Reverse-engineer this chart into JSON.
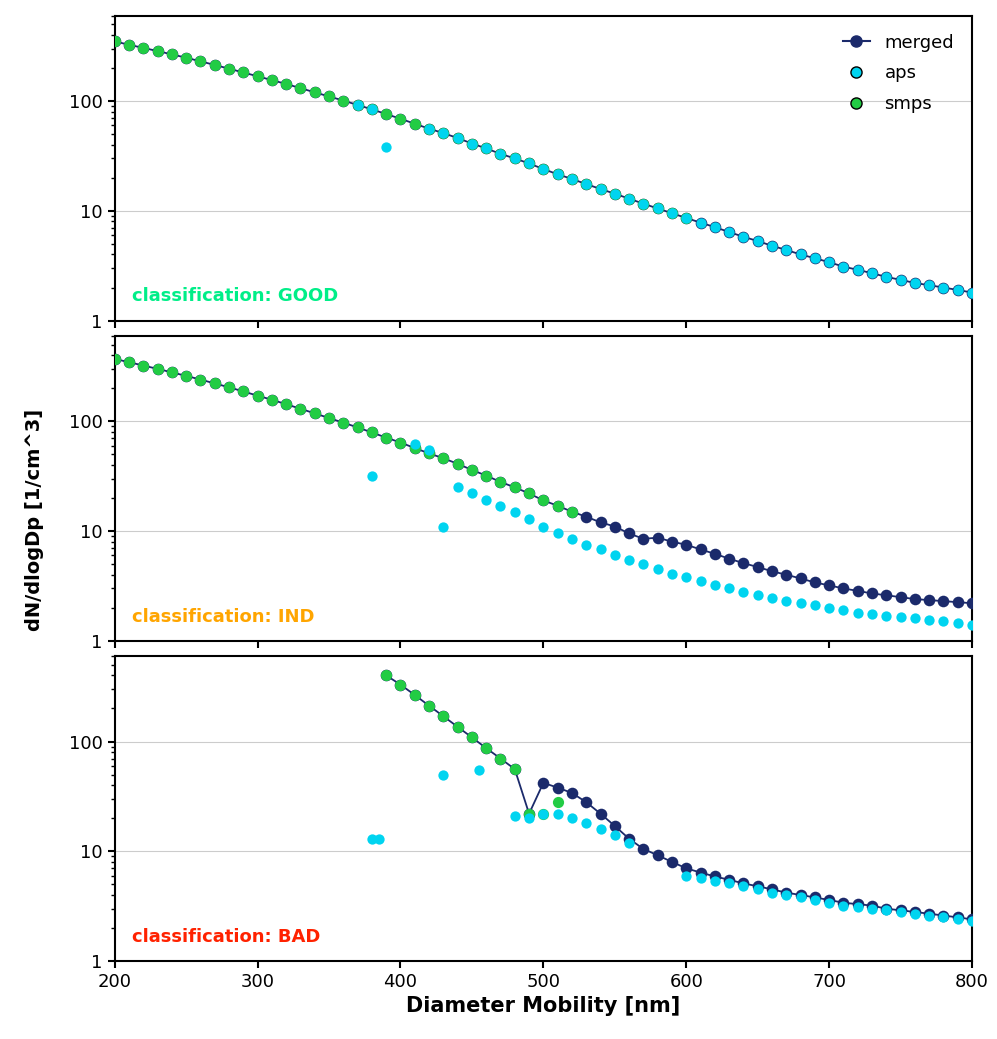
{
  "title": "",
  "xlabel": "Diameter Mobility [nm]",
  "ylabel": "dN/dlogDp [1/cm^3]",
  "xlim": [
    200,
    800
  ],
  "ylim": [
    1,
    600
  ],
  "background_color": "#ffffff",
  "merged_color": "#1b2a6b",
  "aps_color": "#00d4f0",
  "smps_color": "#22cc44",
  "panels": [
    {
      "classification": "GOOD",
      "label_color": "#00ee88",
      "smps_x": [
        200,
        210,
        220,
        230,
        240,
        250,
        260,
        270,
        280,
        290,
        300,
        310,
        320,
        330,
        340,
        350,
        360,
        370,
        380,
        390,
        400,
        410,
        420,
        430,
        440,
        450,
        460,
        470,
        480,
        490,
        500,
        510,
        520,
        530,
        540,
        550,
        560,
        570,
        580,
        590,
        600
      ],
      "smps_y": [
        350,
        325,
        305,
        285,
        266,
        248,
        230,
        213,
        197,
        182,
        168,
        155,
        143,
        131,
        120,
        110,
        101,
        92,
        84,
        76,
        69,
        62,
        56,
        51,
        46,
        41,
        37,
        33,
        30,
        27,
        24,
        21.5,
        19.5,
        17.5,
        15.8,
        14.3,
        12.9,
        11.6,
        10.5,
        9.5,
        8.6
      ],
      "aps_x": [
        370,
        380,
        420,
        430,
        440,
        450,
        460,
        470,
        480,
        490,
        500,
        510,
        520,
        530,
        540,
        550,
        560,
        570,
        580,
        590,
        600,
        610,
        620,
        630,
        640,
        650,
        660,
        670,
        680,
        690,
        700,
        710,
        720,
        730,
        740,
        750,
        760,
        770,
        780,
        790,
        800
      ],
      "aps_y": [
        92,
        84,
        56,
        51,
        46,
        41,
        37,
        33,
        30,
        27,
        24,
        21.5,
        19.5,
        17.5,
        15.8,
        14.3,
        12.9,
        11.6,
        10.5,
        9.5,
        8.6,
        7.8,
        7.1,
        6.4,
        5.8,
        5.3,
        4.8,
        4.4,
        4.0,
        3.7,
        3.4,
        3.1,
        2.9,
        2.7,
        2.5,
        2.35,
        2.2,
        2.1,
        2.0,
        1.9,
        1.8
      ],
      "aps_outlier_x": [
        390
      ],
      "aps_outlier_y": [
        38
      ],
      "merged_x": [
        200,
        210,
        220,
        230,
        240,
        250,
        260,
        270,
        280,
        290,
        300,
        310,
        320,
        330,
        340,
        350,
        360,
        370,
        380,
        390,
        400,
        410,
        420,
        430,
        440,
        450,
        460,
        470,
        480,
        490,
        500,
        510,
        520,
        530,
        540,
        550,
        560,
        570,
        580,
        590,
        600,
        610,
        620,
        630,
        640,
        650,
        660,
        670,
        680,
        690,
        700,
        710,
        720,
        730,
        740,
        750,
        760,
        770,
        780,
        790,
        800
      ],
      "merged_y": [
        350,
        325,
        305,
        285,
        266,
        248,
        230,
        213,
        197,
        182,
        168,
        155,
        143,
        131,
        120,
        110,
        101,
        92,
        84,
        76,
        69,
        62,
        56,
        51,
        46,
        41,
        37,
        33,
        30,
        27,
        24,
        21.5,
        19.5,
        17.5,
        15.8,
        14.3,
        12.9,
        11.6,
        10.5,
        9.5,
        8.6,
        7.8,
        7.1,
        6.4,
        5.8,
        5.3,
        4.8,
        4.4,
        4.0,
        3.7,
        3.4,
        3.1,
        2.9,
        2.7,
        2.5,
        2.35,
        2.2,
        2.1,
        2.0,
        1.9,
        1.8
      ]
    },
    {
      "classification": "IND",
      "label_color": "#ffa500",
      "smps_x": [
        200,
        210,
        220,
        230,
        240,
        250,
        260,
        270,
        280,
        290,
        300,
        310,
        320,
        330,
        340,
        350,
        360,
        370,
        380,
        390,
        400,
        410,
        420,
        430,
        440,
        450,
        460,
        470,
        480,
        490,
        500,
        510,
        520
      ],
      "smps_y": [
        370,
        345,
        322,
        300,
        279,
        259,
        240,
        221,
        204,
        187,
        171,
        157,
        143,
        130,
        118,
        107,
        97,
        88,
        79,
        71,
        64,
        57,
        51,
        46,
        41,
        36,
        32,
        28,
        25,
        22,
        19,
        17,
        15
      ],
      "aps_x": [
        380,
        410,
        420,
        440,
        450,
        460,
        470,
        480,
        490,
        500,
        510,
        520,
        530,
        540,
        550,
        560,
        570,
        580,
        590,
        600,
        610,
        620,
        630,
        640,
        650,
        660,
        670,
        680,
        690,
        700,
        710,
        720,
        730,
        740,
        750,
        760,
        770,
        780,
        790,
        800
      ],
      "aps_y": [
        32,
        62,
        55,
        25,
        22,
        19,
        17,
        15,
        13,
        11,
        9.5,
        8.5,
        7.5,
        6.8,
        6.1,
        5.5,
        5.0,
        4.5,
        4.1,
        3.8,
        3.5,
        3.2,
        3.0,
        2.8,
        2.6,
        2.45,
        2.3,
        2.2,
        2.1,
        2.0,
        1.9,
        1.8,
        1.75,
        1.7,
        1.65,
        1.6,
        1.55,
        1.5,
        1.45,
        1.4
      ],
      "aps_outlier_x": [
        430
      ],
      "aps_outlier_y": [
        11
      ],
      "merged_x": [
        200,
        210,
        220,
        230,
        240,
        250,
        260,
        270,
        280,
        290,
        300,
        310,
        320,
        330,
        340,
        350,
        360,
        370,
        380,
        390,
        400,
        410,
        420,
        430,
        440,
        450,
        460,
        470,
        480,
        490,
        500,
        510,
        520,
        530,
        540,
        550,
        560,
        570,
        580,
        590,
        600,
        610,
        620,
        630,
        640,
        650,
        660,
        670,
        680,
        690,
        700,
        710,
        720,
        730,
        740,
        750,
        760,
        770,
        780,
        790,
        800
      ],
      "merged_y": [
        370,
        345,
        322,
        300,
        279,
        259,
        240,
        221,
        204,
        187,
        171,
        157,
        143,
        130,
        118,
        107,
        97,
        88,
        79,
        71,
        64,
        57,
        51,
        46,
        41,
        36,
        32,
        28,
        25,
        22,
        19,
        17,
        15,
        13.5,
        12.0,
        11.0,
        9.5,
        8.5,
        8.7,
        8.0,
        7.5,
        6.8,
        6.2,
        5.6,
        5.1,
        4.7,
        4.3,
        4.0,
        3.7,
        3.4,
        3.2,
        3.0,
        2.85,
        2.7,
        2.6,
        2.5,
        2.4,
        2.35,
        2.3,
        2.25,
        2.2
      ]
    },
    {
      "classification": "BAD",
      "label_color": "#ff2200",
      "smps_x": [
        390,
        400,
        410,
        420,
        430,
        440,
        450,
        460,
        470,
        480,
        490,
        500,
        510
      ],
      "smps_y": [
        400,
        330,
        265,
        212,
        170,
        136,
        109,
        87,
        70,
        56,
        22,
        22,
        28
      ],
      "aps_x": [
        380,
        430,
        455,
        480,
        490,
        500,
        510,
        520,
        530,
        540,
        550,
        560,
        600,
        610,
        620,
        630,
        640,
        650,
        660,
        670,
        680,
        690,
        700,
        710,
        720,
        730,
        740,
        750,
        760,
        770,
        780,
        790,
        800
      ],
      "aps_y": [
        13,
        50,
        55,
        21,
        20,
        22,
        22,
        20,
        18,
        16,
        14,
        12,
        6.0,
        5.7,
        5.4,
        5.1,
        4.8,
        4.5,
        4.2,
        4.0,
        3.8,
        3.6,
        3.4,
        3.2,
        3.1,
        3.0,
        2.9,
        2.8,
        2.7,
        2.6,
        2.5,
        2.4,
        2.3
      ],
      "aps_outlier_x": [
        385
      ],
      "aps_outlier_y": [
        13
      ],
      "merged_x": [
        390,
        400,
        410,
        420,
        430,
        440,
        450,
        460,
        470,
        480,
        490,
        500,
        510,
        520,
        530,
        540,
        550,
        560,
        570,
        580,
        590,
        600,
        610,
        620,
        630,
        640,
        650,
        660,
        670,
        680,
        690,
        700,
        710,
        720,
        730,
        740,
        750,
        760,
        770,
        780,
        790,
        800
      ],
      "merged_y": [
        400,
        330,
        265,
        212,
        170,
        136,
        109,
        87,
        70,
        56,
        22,
        42,
        38,
        34,
        28,
        22,
        17,
        13,
        10.5,
        9.2,
        8.0,
        7.0,
        6.4,
        5.9,
        5.5,
        5.1,
        4.8,
        4.5,
        4.2,
        4.0,
        3.8,
        3.6,
        3.4,
        3.3,
        3.2,
        3.0,
        2.9,
        2.8,
        2.7,
        2.6,
        2.5,
        2.4
      ]
    }
  ]
}
